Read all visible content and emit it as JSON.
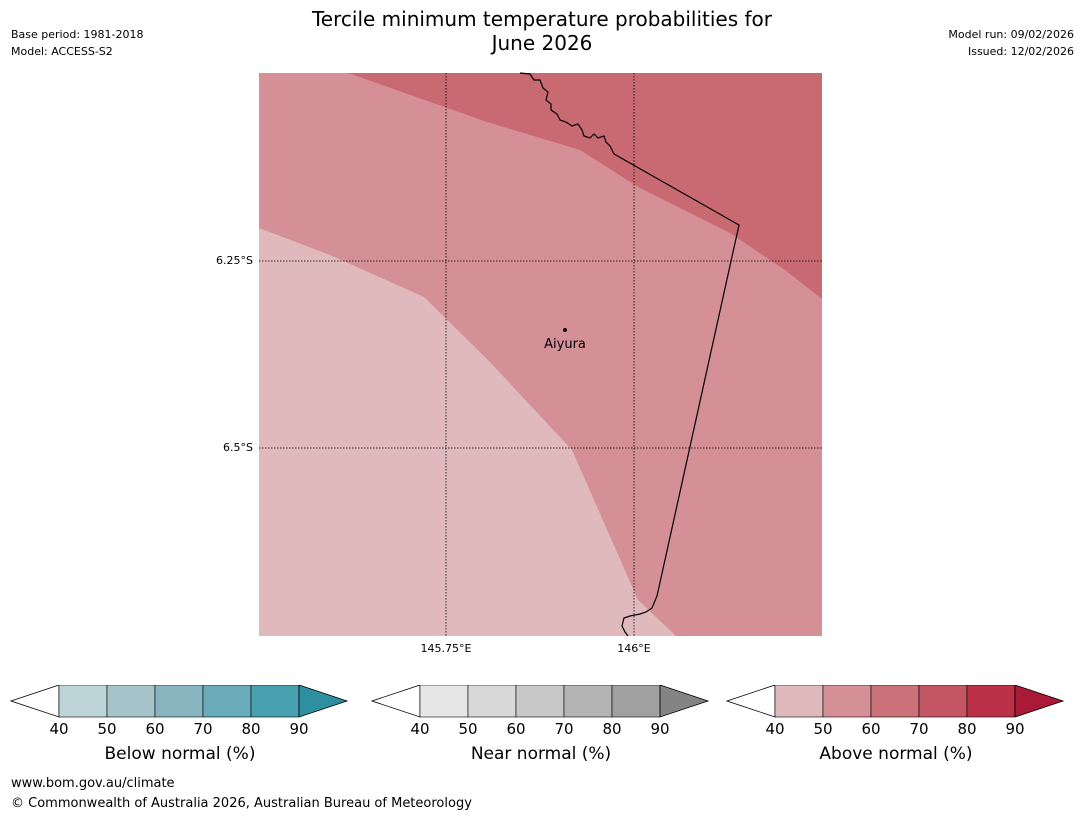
{
  "header": {
    "title_line1": "Tercile minimum temperature probabilities for",
    "title_line2": "June 2026",
    "base_period": "Base period: 1981-2018",
    "model": "Model: ACCESS-S2",
    "model_run": "Model run: 09/02/2026",
    "issued": "Issued: 12/02/2026"
  },
  "map": {
    "place_name": "Aiyura",
    "lat_labels": [
      "6.25°S",
      "6.5°S"
    ],
    "lon_labels": [
      "145.75°E",
      "146°E"
    ],
    "zone_colors": {
      "above_40_50": "#e0b9bd",
      "above_50_60": "#d59097",
      "above_60_70": "#c96a73"
    }
  },
  "colorbars": [
    {
      "label": "Below normal (%)",
      "ticks": [
        "40",
        "50",
        "60",
        "70",
        "80",
        "90"
      ],
      "colors": [
        "#bdd4d9",
        "#a5c4ca",
        "#88b4c0",
        "#6aacb9",
        "#48a1b0"
      ],
      "extend_color": "#2e8fa1"
    },
    {
      "label": "Near normal (%)",
      "ticks": [
        "40",
        "50",
        "60",
        "70",
        "80",
        "90"
      ],
      "colors": [
        "#e6e6e6",
        "#d8d8d8",
        "#c8c8c8",
        "#b4b4b4",
        "#a0a0a0"
      ],
      "extend_color": "#848484"
    },
    {
      "label": "Above normal (%)",
      "ticks": [
        "40",
        "50",
        "60",
        "70",
        "80",
        "90"
      ],
      "colors": [
        "#e0b9bd",
        "#d59097",
        "#cb7179",
        "#c45663",
        "#bb3147"
      ],
      "extend_color": "#aa1a37"
    }
  ],
  "footer": {
    "website": "www.bom.gov.au/climate",
    "copyright": "© Commonwealth of Australia 2026, Australian Bureau of Meteorology"
  }
}
